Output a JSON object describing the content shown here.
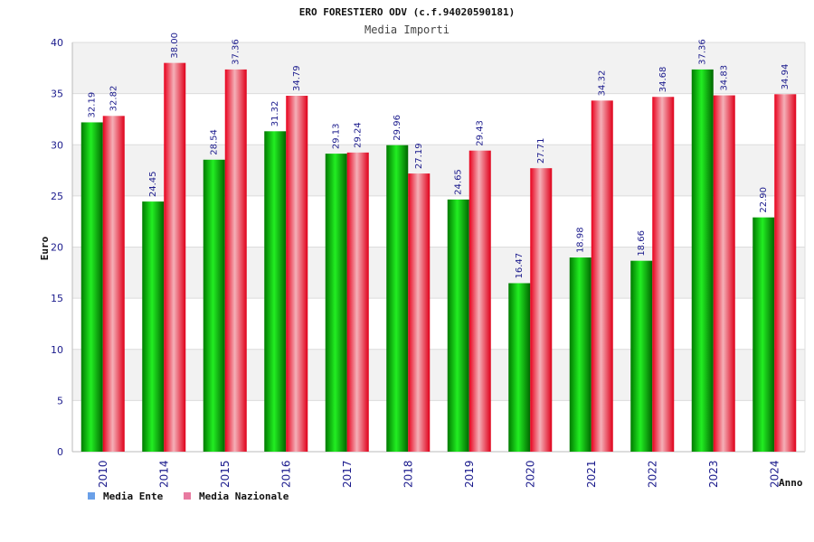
{
  "colors": {
    "ente": "#00b000",
    "nazionale": "#e0102a",
    "band": "#f2f2f2",
    "grid": "#dcdcdc",
    "tick_text": "#1a1a8c",
    "legend_ente_swatch": "#6aa0e8",
    "legend_nazionale_swatch": "#e87aa0"
  },
  "chart_data": {
    "type": "bar",
    "title": "ERO FORESTIERO ODV (c.f.94020590181)",
    "subtitle": "Media Importi",
    "xlabel": "Anno",
    "ylabel": "Euro",
    "ylim": [
      0,
      40
    ],
    "yticks": [
      0,
      5,
      10,
      15,
      20,
      25,
      30,
      35,
      40
    ],
    "categories": [
      "2010",
      "2014",
      "2015",
      "2016",
      "2017",
      "2018",
      "2019",
      "2020",
      "2021",
      "2022",
      "2023",
      "2024"
    ],
    "series": [
      {
        "name": "Media Ente",
        "values": [
          32.19,
          24.45,
          28.54,
          31.32,
          29.13,
          29.96,
          24.65,
          16.47,
          18.98,
          18.66,
          37.36,
          22.9
        ],
        "labels": [
          "32.19",
          "24.45",
          "28.54",
          "31.32",
          "29.13",
          "29.96",
          "24.65",
          "16.47",
          "18.98",
          "18.66",
          "37.36",
          "22.90"
        ]
      },
      {
        "name": "Media Nazionale",
        "values": [
          32.82,
          38.0,
          37.36,
          34.79,
          29.24,
          27.19,
          29.43,
          27.71,
          34.32,
          34.68,
          34.83,
          34.94
        ],
        "labels": [
          "32.82",
          "38.00",
          "37.36",
          "34.79",
          "29.24",
          "27.19",
          "29.43",
          "27.71",
          "34.32",
          "34.68",
          "34.83",
          "34.94"
        ]
      }
    ],
    "grid": true,
    "legend_position": "bottom-left"
  }
}
